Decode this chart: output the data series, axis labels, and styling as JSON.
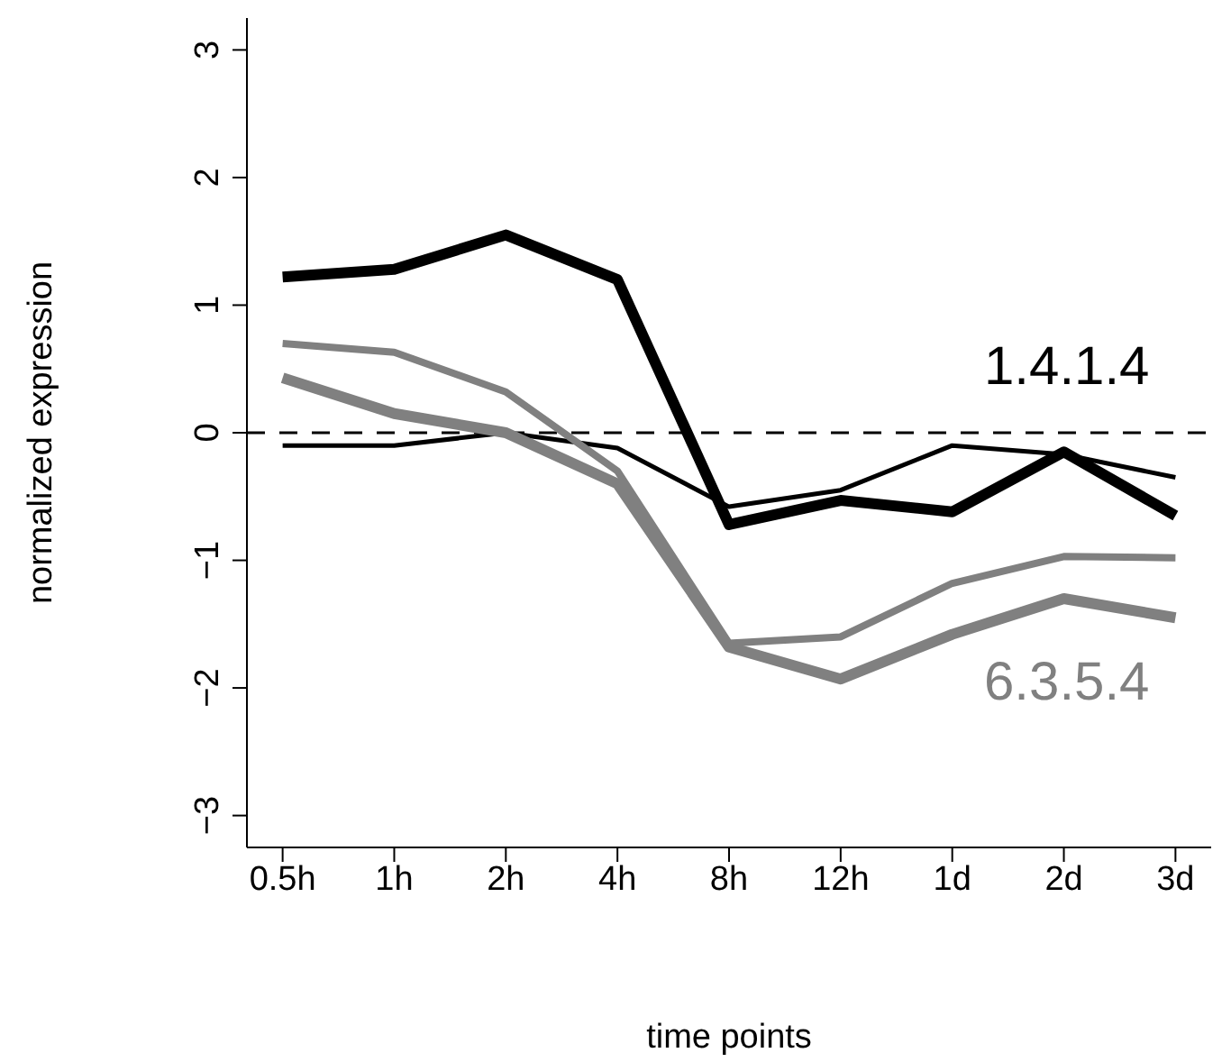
{
  "chart_data": {
    "type": "line",
    "xlabel": "time points",
    "ylabel": "normalized expression",
    "categories": [
      "0.5h",
      "1h",
      "2h",
      "4h",
      "8h",
      "12h",
      "1d",
      "2d",
      "3d"
    ],
    "series": [
      {
        "color": "#000000",
        "values": [
          1.22,
          1.28,
          1.55,
          1.2,
          -0.72,
          -0.53,
          -0.62,
          -0.15,
          -0.65
        ]
      },
      {
        "color": "#000000",
        "values": [
          -0.1,
          -0.1,
          0.0,
          -0.12,
          -0.58,
          -0.45,
          -0.1,
          -0.17,
          -0.35
        ]
      },
      {
        "color": "#808080",
        "values": [
          0.7,
          0.63,
          0.32,
          -0.3,
          -1.65,
          -1.6,
          -1.18,
          -0.97,
          -0.98
        ]
      },
      {
        "color": "#808080",
        "values": [
          0.43,
          0.15,
          0.0,
          -0.4,
          -1.68,
          -1.93,
          -1.58,
          -1.3,
          -1.45
        ]
      }
    ],
    "ylim": [
      -3.25,
      3.25
    ],
    "yticks": [
      -3,
      -2,
      -1,
      0,
      1,
      2,
      3
    ],
    "ref_lines": [
      {
        "axis": "y",
        "value": 0,
        "line_style": "dashed",
        "color": "#000000"
      }
    ],
    "annotations": [
      "1.4.1.4",
      "6.3.5.4"
    ],
    "grid": false,
    "legend": false,
    "marker": "none",
    "line_style": "solid"
  }
}
